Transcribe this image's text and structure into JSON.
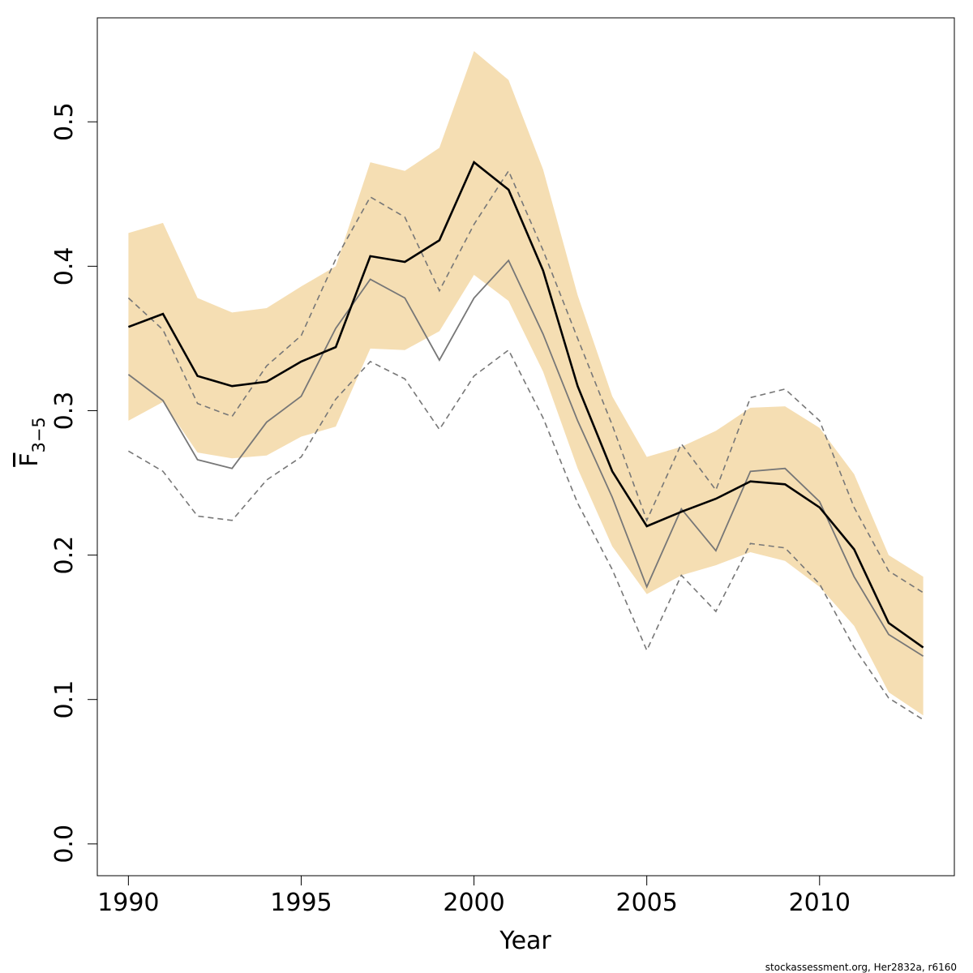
{
  "chart_data": {
    "type": "line",
    "xlabel": "Year",
    "ylabel": {
      "main": "F",
      "subscript": "3−5"
    },
    "xlim": [
      1989.1,
      2013.9
    ],
    "ylim": [
      -0.022,
      0.572
    ],
    "xticks": [
      1990,
      1995,
      2000,
      2005,
      2010
    ],
    "yticks": [
      0.0,
      0.1,
      0.2,
      0.3,
      0.4,
      0.5
    ],
    "ytick_labels": [
      "0.0",
      "0.1",
      "0.2",
      "0.3",
      "0.4",
      "0.5"
    ],
    "grid": false,
    "legend": "none",
    "credit": "stockassessment.org, Her2832a, r6160",
    "colors": {
      "band": "#f5deb3",
      "estimate": "#000000",
      "comparison": "#777777"
    },
    "x": [
      1990,
      1991,
      1992,
      1993,
      1994,
      1995,
      1996,
      1997,
      1998,
      1999,
      2000,
      2001,
      2002,
      2003,
      2004,
      2005,
      2006,
      2007,
      2008,
      2009,
      2010,
      2011,
      2012,
      2013
    ],
    "series": [
      {
        "role": "band-upper",
        "values": [
          0.423,
          0.43,
          0.378,
          0.368,
          0.371,
          0.386,
          0.4,
          0.472,
          0.466,
          0.482,
          0.549,
          0.529,
          0.467,
          0.38,
          0.31,
          0.268,
          0.275,
          0.286,
          0.302,
          0.303,
          0.288,
          0.256,
          0.2,
          0.185
        ]
      },
      {
        "role": "band-lower",
        "values": [
          0.293,
          0.306,
          0.271,
          0.267,
          0.269,
          0.282,
          0.289,
          0.343,
          0.342,
          0.355,
          0.394,
          0.376,
          0.327,
          0.26,
          0.206,
          0.173,
          0.186,
          0.193,
          0.202,
          0.196,
          0.178,
          0.151,
          0.105,
          0.089
        ]
      },
      {
        "role": "estimate",
        "values": [
          0.358,
          0.367,
          0.324,
          0.317,
          0.32,
          0.334,
          0.344,
          0.407,
          0.403,
          0.418,
          0.472,
          0.453,
          0.397,
          0.317,
          0.258,
          0.22,
          0.23,
          0.239,
          0.251,
          0.249,
          0.233,
          0.204,
          0.153,
          0.136
        ]
      },
      {
        "role": "comparison",
        "values": [
          0.325,
          0.307,
          0.266,
          0.26,
          0.292,
          0.31,
          0.357,
          0.391,
          0.378,
          0.335,
          0.378,
          0.404,
          0.353,
          0.293,
          0.24,
          0.178,
          0.232,
          0.203,
          0.258,
          0.26,
          0.237,
          0.185,
          0.145,
          0.13
        ]
      },
      {
        "role": "comparison-upper",
        "values": [
          0.378,
          0.356,
          0.305,
          0.296,
          0.331,
          0.352,
          0.405,
          0.448,
          0.434,
          0.383,
          0.429,
          0.466,
          0.411,
          0.35,
          0.29,
          0.224,
          0.277,
          0.245,
          0.309,
          0.315,
          0.293,
          0.233,
          0.189,
          0.174
        ]
      },
      {
        "role": "comparison-lower",
        "values": [
          0.272,
          0.258,
          0.227,
          0.224,
          0.252,
          0.268,
          0.308,
          0.334,
          0.322,
          0.287,
          0.324,
          0.342,
          0.295,
          0.236,
          0.19,
          0.134,
          0.186,
          0.161,
          0.208,
          0.205,
          0.18,
          0.136,
          0.101,
          0.086
        ]
      }
    ]
  }
}
